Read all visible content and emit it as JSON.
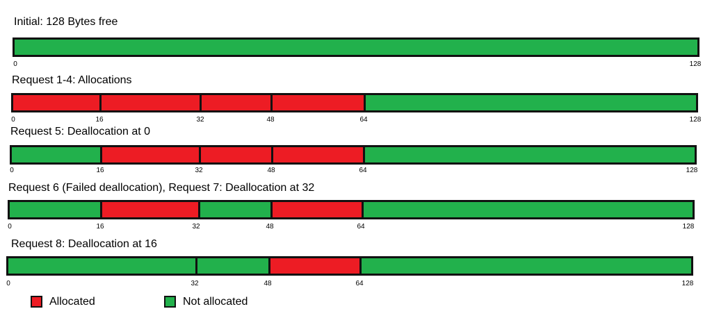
{
  "diagram": {
    "colors": {
      "allocated": "#ed1c24",
      "not_allocated": "#22b14c",
      "outline": "#111111"
    },
    "total_bytes": 128,
    "rows": [
      {
        "title": "Initial: 128 Bytes free",
        "ticks": [
          "0",
          "128"
        ],
        "segments": [
          {
            "start": 0,
            "end": 128,
            "state": "free"
          }
        ]
      },
      {
        "title": "Request 1-4: Allocations",
        "ticks": [
          "0",
          "16",
          "32",
          "48",
          "64",
          "128"
        ],
        "segments": [
          {
            "start": 0,
            "end": 16,
            "state": "allocated"
          },
          {
            "start": 16,
            "end": 32,
            "state": "allocated"
          },
          {
            "start": 32,
            "end": 48,
            "state": "allocated"
          },
          {
            "start": 48,
            "end": 64,
            "state": "allocated"
          },
          {
            "start": 64,
            "end": 128,
            "state": "free"
          }
        ]
      },
      {
        "title": "Request 5: Deallocation at 0",
        "ticks": [
          "0",
          "16",
          "32",
          "48",
          "64",
          "128"
        ],
        "segments": [
          {
            "start": 0,
            "end": 16,
            "state": "free"
          },
          {
            "start": 16,
            "end": 32,
            "state": "allocated"
          },
          {
            "start": 32,
            "end": 48,
            "state": "allocated"
          },
          {
            "start": 48,
            "end": 64,
            "state": "allocated"
          },
          {
            "start": 64,
            "end": 128,
            "state": "free"
          }
        ]
      },
      {
        "title": "Request 6 (Failed deallocation), Request 7: Deallocation at 32",
        "ticks": [
          "0",
          "16",
          "32",
          "48",
          "64",
          "128"
        ],
        "segments": [
          {
            "start": 0,
            "end": 16,
            "state": "free"
          },
          {
            "start": 16,
            "end": 32,
            "state": "allocated"
          },
          {
            "start": 32,
            "end": 48,
            "state": "free"
          },
          {
            "start": 48,
            "end": 64,
            "state": "allocated"
          },
          {
            "start": 64,
            "end": 128,
            "state": "free"
          }
        ]
      },
      {
        "title": "Request 8: Deallocation at 16",
        "ticks": [
          "0",
          "32",
          "48",
          "64",
          "128"
        ],
        "segments": [
          {
            "start": 0,
            "end": 32,
            "state": "free"
          },
          {
            "start": 32,
            "end": 48,
            "state": "free"
          },
          {
            "start": 48,
            "end": 64,
            "state": "allocated"
          },
          {
            "start": 64,
            "end": 128,
            "state": "free"
          }
        ]
      }
    ],
    "legend": [
      {
        "label": "Allocated",
        "state": "allocated"
      },
      {
        "label": "Not allocated",
        "state": "free"
      }
    ]
  }
}
